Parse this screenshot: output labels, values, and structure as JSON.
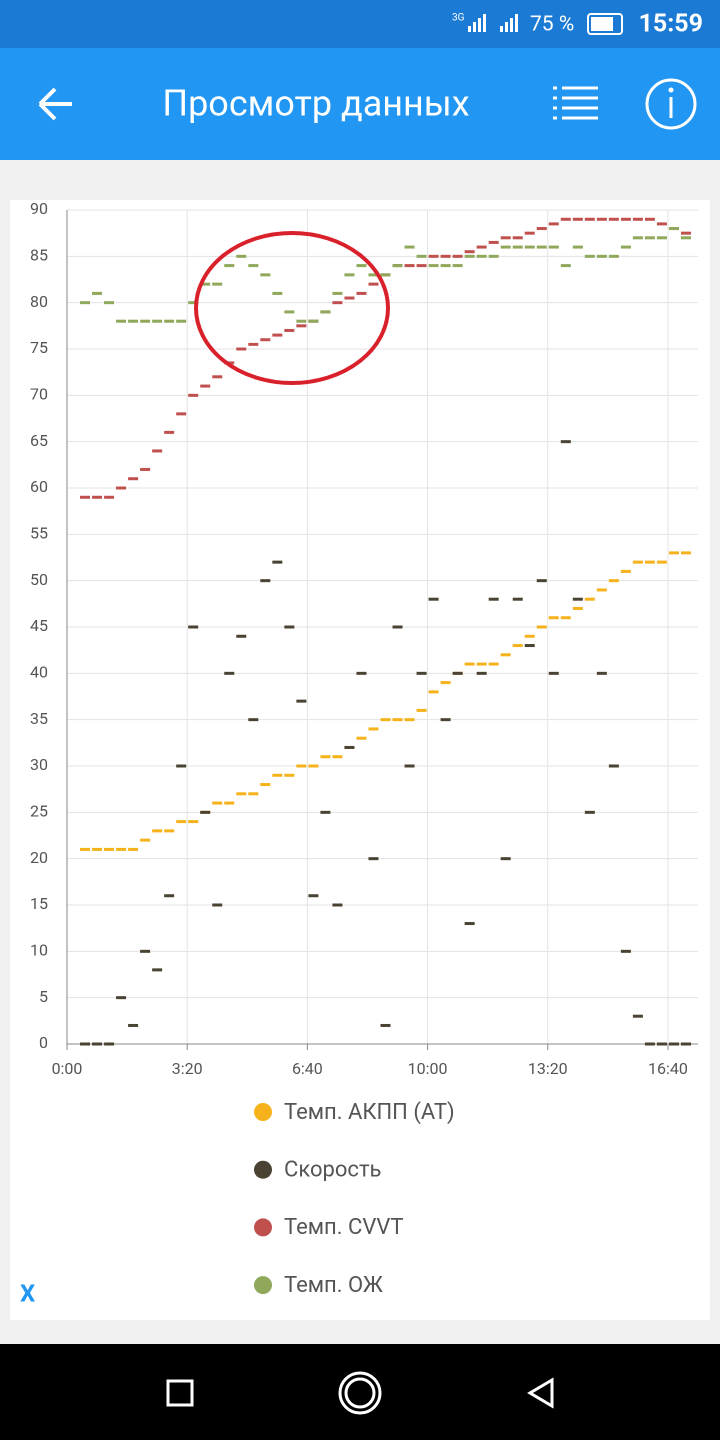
{
  "status_bar": {
    "network": "3G",
    "battery": "75 %",
    "time": "15:59"
  },
  "app_bar": {
    "title": "Просмотр данных"
  },
  "close_label": "X",
  "chart_data": {
    "type": "scatter",
    "x": [
      30,
      50,
      70,
      90,
      110,
      130,
      150,
      170,
      190,
      210,
      230,
      250,
      270,
      290,
      310,
      330,
      350,
      370,
      390,
      410,
      430,
      450,
      470,
      490,
      510,
      530,
      550,
      570,
      590,
      610,
      630,
      650,
      670,
      690,
      710,
      730,
      750,
      770,
      790,
      810,
      830,
      850,
      870,
      890,
      910,
      930,
      950,
      970,
      990,
      1010,
      1030
    ],
    "xlim": [
      0,
      1050
    ],
    "xticks": [
      {
        "value": 0,
        "label": "0:00"
      },
      {
        "value": 200,
        "label": "3:20"
      },
      {
        "value": 400,
        "label": "6:40"
      },
      {
        "value": 600,
        "label": "10:00"
      },
      {
        "value": 800,
        "label": "13:20"
      },
      {
        "value": 1000,
        "label": "16:40"
      }
    ],
    "ylim": [
      0,
      90
    ],
    "yticks": [
      0,
      5,
      10,
      15,
      20,
      25,
      30,
      35,
      40,
      45,
      50,
      55,
      60,
      65,
      70,
      75,
      80,
      85,
      90
    ],
    "grid": true,
    "series": [
      {
        "name": "Темп. АКПП (AT)",
        "color": "#f6b21b",
        "values": [
          21,
          21,
          21,
          21,
          21,
          22,
          23,
          23,
          24,
          24,
          25,
          26,
          26,
          27,
          27,
          28,
          29,
          29,
          30,
          30,
          31,
          31,
          32,
          33,
          34,
          35,
          35,
          35,
          36,
          38,
          39,
          40,
          41,
          41,
          41,
          42,
          43,
          44,
          45,
          46,
          46,
          47,
          48,
          49,
          50,
          51,
          52,
          52,
          52,
          53,
          53
        ]
      },
      {
        "name": "Скорость",
        "color": "#4a4232",
        "values": [
          0,
          0,
          0,
          5,
          2,
          10,
          8,
          16,
          30,
          45,
          25,
          15,
          40,
          44,
          35,
          50,
          52,
          45,
          37,
          16,
          25,
          15,
          32,
          40,
          20,
          2,
          45,
          30,
          40,
          48,
          35,
          40,
          13,
          40,
          48,
          20,
          48,
          43,
          50,
          40,
          65,
          48,
          25,
          40,
          30,
          10,
          3,
          0,
          0,
          0,
          0
        ]
      },
      {
        "name": "Темп. CVVT",
        "color": "#c0504d",
        "values": [
          59,
          59,
          59,
          60,
          61,
          62,
          64,
          66,
          68,
          70,
          71,
          72,
          73.5,
          75,
          75.5,
          76,
          76.5,
          77,
          77.5,
          78,
          79,
          80,
          80.5,
          81,
          82,
          83,
          84,
          84,
          84,
          85,
          85,
          85,
          85.5,
          86,
          86.5,
          87,
          87,
          87.5,
          88,
          88.5,
          89,
          89,
          89,
          89,
          89,
          89,
          89,
          89,
          88.5,
          88,
          87.5
        ]
      },
      {
        "name": "Темп. ОЖ",
        "color": "#8fa85a",
        "values": [
          80,
          81,
          80,
          78,
          78,
          78,
          78,
          78,
          78,
          80,
          82,
          82,
          84,
          85,
          84,
          83,
          81,
          79,
          78,
          78,
          79,
          81,
          83,
          84,
          83,
          83,
          84,
          86,
          85,
          84,
          84,
          84,
          85,
          85,
          85,
          86,
          86,
          86,
          86,
          86,
          84,
          86,
          85,
          85,
          85,
          86,
          87,
          87,
          87,
          88,
          87
        ]
      }
    ]
  }
}
